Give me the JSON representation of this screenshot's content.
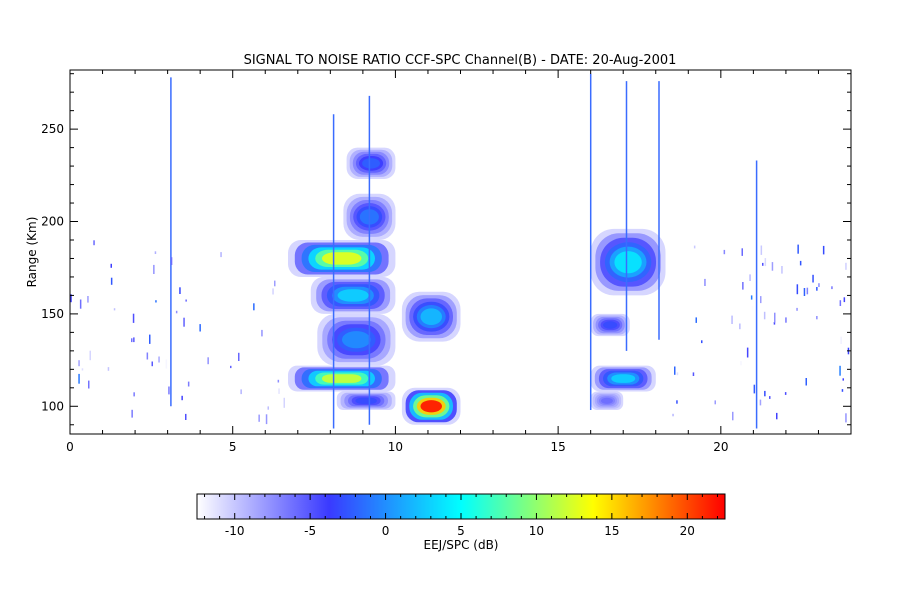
{
  "chart_data": {
    "type": "heatmap",
    "title": "SIGNAL TO NOISE RATIO CCF-SPC Channel(B) - DATE: 20-Aug-2001",
    "xlabel": "",
    "ylabel": "Range (Km)",
    "xlim": [
      0,
      24
    ],
    "ylim": [
      85,
      282
    ],
    "x_ticks": [
      0,
      5,
      10,
      15,
      20
    ],
    "y_ticks": [
      100,
      150,
      200,
      250
    ],
    "colorbar": {
      "label": "EEJ/SPC (dB)",
      "range": [
        -12.5,
        22.5
      ],
      "ticks": [
        -10,
        -5,
        0,
        5,
        10,
        15,
        20
      ],
      "colormap": [
        "#ffffff",
        "#3a3aff",
        "#00ffff",
        "#ffff00",
        "#ff0000"
      ]
    },
    "echo_regions": [
      {
        "x0": 6.7,
        "x1": 10.0,
        "y0": 170,
        "y1": 190,
        "peak_db": 13
      },
      {
        "x0": 6.7,
        "x1": 10.0,
        "y0": 108,
        "y1": 122,
        "peak_db": 12
      },
      {
        "x0": 7.4,
        "x1": 10.0,
        "y0": 150,
        "y1": 170,
        "peak_db": 3
      },
      {
        "x0": 7.6,
        "x1": 10.0,
        "y0": 122,
        "y1": 150,
        "peak_db": 0
      },
      {
        "x0": 8.4,
        "x1": 10.0,
        "y0": 190,
        "y1": 215,
        "peak_db": -1
      },
      {
        "x0": 8.5,
        "x1": 10.0,
        "y0": 223,
        "y1": 240,
        "peak_db": -2
      },
      {
        "x0": 8.2,
        "x1": 10.0,
        "y0": 98,
        "y1": 108,
        "peak_db": -3
      },
      {
        "x0": 10.2,
        "x1": 12.0,
        "y0": 135,
        "y1": 162,
        "peak_db": 2
      },
      {
        "x0": 10.2,
        "x1": 12.0,
        "y0": 90,
        "y1": 110,
        "peak_db": 22
      },
      {
        "x0": 16.0,
        "x1": 18.3,
        "y0": 160,
        "y1": 196,
        "peak_db": 4
      },
      {
        "x0": 16.0,
        "x1": 18.0,
        "y0": 108,
        "y1": 122,
        "peak_db": 3
      },
      {
        "x0": 16.0,
        "x1": 17.2,
        "y0": 138,
        "y1": 150,
        "peak_db": -3
      },
      {
        "x0": 16.0,
        "x1": 17.0,
        "y0": 98,
        "y1": 108,
        "peak_db": -6
      }
    ],
    "vertical_streaks": [
      {
        "x": 3.1,
        "y0": 100,
        "y1": 278
      },
      {
        "x": 8.1,
        "y0": 88,
        "y1": 258
      },
      {
        "x": 9.2,
        "y0": 90,
        "y1": 268
      },
      {
        "x": 16.0,
        "y0": 98,
        "y1": 280
      },
      {
        "x": 17.1,
        "y0": 130,
        "y1": 276
      },
      {
        "x": 18.1,
        "y0": 136,
        "y1": 276
      },
      {
        "x": 21.1,
        "y0": 88,
        "y1": 233
      }
    ]
  }
}
